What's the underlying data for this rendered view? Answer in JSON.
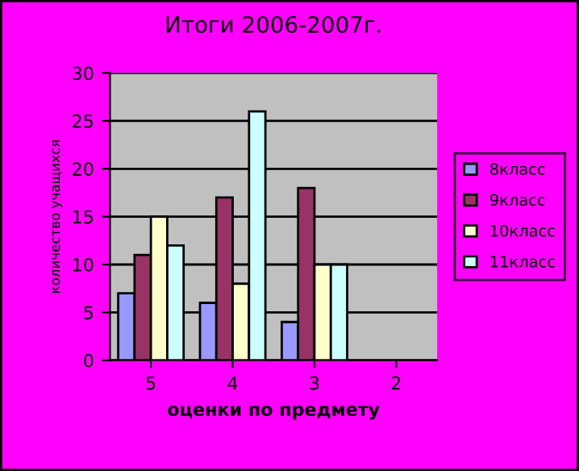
{
  "chart_data": {
    "type": "bar",
    "title": "Итоги 2006-2007г.",
    "xlabel": "оценки по предмету",
    "ylabel": "количество учащихся",
    "categories": [
      "5",
      "4",
      "3",
      "2"
    ],
    "series": [
      {
        "name": "8класс",
        "color": "#9999ff",
        "values": [
          7,
          6,
          4,
          null
        ]
      },
      {
        "name": "9класс",
        "color": "#993366",
        "values": [
          11,
          17,
          18,
          null
        ]
      },
      {
        "name": "10класс",
        "color": "#ffffcc",
        "values": [
          15,
          8,
          10,
          null
        ]
      },
      {
        "name": "11класс",
        "color": "#ccffff",
        "values": [
          12,
          26,
          10,
          null
        ]
      }
    ],
    "ylim": [
      0,
      30
    ],
    "yticks": [
      0,
      5,
      10,
      15,
      20,
      25,
      30
    ],
    "grid": "y",
    "legend": "right"
  }
}
